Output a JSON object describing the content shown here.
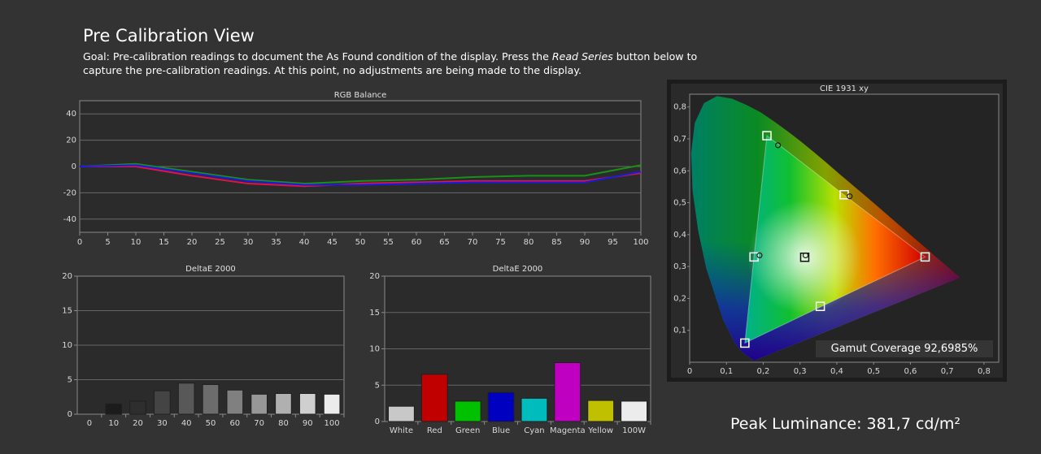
{
  "page": {
    "title": "Pre Calibration View",
    "goal_pre": "Goal: Pre-calibration readings to document the As Found condition of the display. Press the ",
    "goal_em": "Read Series",
    "goal_post": " button below to capture the pre-calibration readings. At this point, no adjustments are being made to the display.",
    "gamut_label": "Gamut Coverage 92,6985%",
    "peak_label": "Peak Luminance: 381,7 cd/m²"
  },
  "chart_data": [
    {
      "id": "rgb",
      "type": "line",
      "title": "RGB Balance",
      "xlabel": "",
      "ylabel": "",
      "xlim": [
        0,
        100
      ],
      "ylim": [
        -50,
        50
      ],
      "xticks": [
        0,
        5,
        10,
        15,
        20,
        25,
        30,
        35,
        40,
        45,
        50,
        55,
        60,
        65,
        70,
        75,
        80,
        85,
        90,
        95,
        100
      ],
      "yticks": [
        -40,
        -20,
        0,
        20,
        40
      ],
      "grid": true,
      "x": [
        0,
        10,
        20,
        30,
        40,
        50,
        60,
        70,
        80,
        90,
        100
      ],
      "series": [
        {
          "color": "#e0134b",
          "values": [
            0,
            0,
            -7,
            -13,
            -15,
            -13,
            -12,
            -11,
            -11,
            -11,
            -5
          ]
        },
        {
          "color": "#1a8f1a",
          "values": [
            0,
            2,
            -4,
            -10,
            -13,
            -11,
            -10,
            -8,
            -7,
            -7,
            1
          ]
        },
        {
          "color": "#1b1bdf",
          "values": [
            0,
            1,
            -5,
            -11,
            -14,
            -14,
            -13,
            -12,
            -12,
            -12,
            -4
          ]
        }
      ]
    },
    {
      "id": "de_gray",
      "type": "bar",
      "title": "DeltaE 2000",
      "ylim": [
        0,
        20
      ],
      "yticks": [
        0,
        5,
        10,
        15,
        20
      ],
      "categories": [
        "0",
        "10",
        "20",
        "30",
        "40",
        "50",
        "60",
        "70",
        "80",
        "90",
        "100"
      ],
      "values": [
        0,
        1.5,
        1.9,
        3.4,
        4.5,
        4.3,
        3.5,
        2.9,
        3.0,
        3.0,
        2.9
      ],
      "colors": [
        "#000000",
        "#1c1c1c",
        "#2e2e2e",
        "#444444",
        "#585858",
        "#6c6c6c",
        "#808080",
        "#979797",
        "#b0b0b0",
        "#cfcfcf",
        "#ececec"
      ]
    },
    {
      "id": "de_color",
      "type": "bar",
      "title": "DeltaE 2000",
      "ylim": [
        0,
        20
      ],
      "yticks": [
        0,
        5,
        10,
        15,
        20
      ],
      "categories": [
        "White",
        "Red",
        "Green",
        "Blue",
        "Cyan",
        "Magenta",
        "Yellow",
        "100W"
      ],
      "values": [
        2.1,
        6.5,
        2.8,
        4.0,
        3.2,
        8.1,
        2.9,
        2.8
      ],
      "colors": [
        "#c8c8c8",
        "#c00000",
        "#00c000",
        "#0000c0",
        "#00bcbc",
        "#c000c0",
        "#c0c000",
        "#ececec"
      ]
    },
    {
      "id": "cie",
      "type": "scatter",
      "title": "CIE 1931 xy",
      "xlim": [
        0,
        0.8
      ],
      "ylim": [
        0,
        0.8
      ],
      "xticks": [
        0,
        0.1,
        0.2,
        0.3,
        0.4,
        0.5,
        0.6,
        0.7,
        0.8
      ],
      "yticks": [
        0.1,
        0.2,
        0.3,
        0.4,
        0.5,
        0.6,
        0.7,
        0.8
      ],
      "xtick_labels": [
        "0",
        "0,1",
        "0,2",
        "0,3",
        "0,4",
        "0,5",
        "0,6",
        "0,7",
        "0,8"
      ],
      "ytick_labels": [
        "0,1",
        "0,2",
        "0,3",
        "0,4",
        "0,5",
        "0,6",
        "0,7",
        "0,8"
      ],
      "target_points": [
        {
          "name": "Red",
          "x": 0.64,
          "y": 0.33
        },
        {
          "name": "Green",
          "x": 0.21,
          "y": 0.71
        },
        {
          "name": "Blue",
          "x": 0.15,
          "y": 0.06
        },
        {
          "name": "Cyan",
          "x": 0.175,
          "y": 0.33
        },
        {
          "name": "Magenta",
          "x": 0.355,
          "y": 0.175
        },
        {
          "name": "Yellow",
          "x": 0.42,
          "y": 0.525
        },
        {
          "name": "White",
          "x": 0.3127,
          "y": 0.329
        }
      ],
      "measured_points": [
        {
          "name": "Green",
          "x": 0.24,
          "y": 0.68
        },
        {
          "name": "Cyan",
          "x": 0.19,
          "y": 0.335
        },
        {
          "name": "Yellow",
          "x": 0.435,
          "y": 0.52
        },
        {
          "name": "White",
          "x": 0.315,
          "y": 0.335
        }
      ]
    }
  ]
}
